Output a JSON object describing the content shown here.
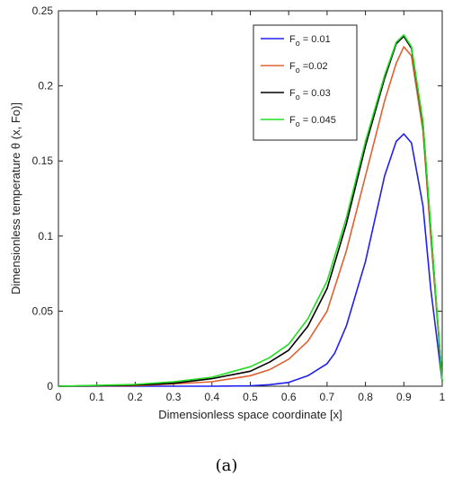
{
  "chart_data": {
    "type": "line",
    "xlabel": "Dimensionless space coordinate [x]",
    "ylabel": "Dimensionless temperature θ (x, Fo)]",
    "xlim": [
      0,
      1
    ],
    "ylim": [
      0,
      0.25
    ],
    "xticks": [
      "0",
      "0.1",
      "0.2",
      "0.3",
      "0.4",
      "0.5",
      "0.6",
      "0.7",
      "0.8",
      "0.9",
      "1"
    ],
    "yticks": [
      "0",
      "0.05",
      "0.1",
      "0.15",
      "0.2",
      "0.25"
    ],
    "grid": false,
    "legend_position": "top-right",
    "series": [
      {
        "name": "Fo = 0.01",
        "legend_sub": "o",
        "legend_value": " = 0.01",
        "color": "#2020ee",
        "x": [
          0,
          0.4,
          0.5,
          0.55,
          0.6,
          0.65,
          0.7,
          0.72,
          0.75,
          0.8,
          0.85,
          0.88,
          0.9,
          0.92,
          0.95,
          0.97,
          1.0
        ],
        "y": [
          0,
          0,
          0.0003,
          0.001,
          0.0025,
          0.007,
          0.015,
          0.022,
          0.04,
          0.083,
          0.14,
          0.163,
          0.168,
          0.162,
          0.12,
          0.065,
          0.003
        ]
      },
      {
        "name": "Fo = 0.02",
        "legend_sub": "o",
        "legend_value": " =0.02",
        "color": "#e06030",
        "x": [
          0,
          0.2,
          0.3,
          0.4,
          0.5,
          0.55,
          0.6,
          0.65,
          0.7,
          0.75,
          0.8,
          0.85,
          0.88,
          0.9,
          0.92,
          0.95,
          0.97,
          1.0
        ],
        "y": [
          0,
          0.0003,
          0.0015,
          0.003,
          0.007,
          0.011,
          0.018,
          0.03,
          0.05,
          0.09,
          0.14,
          0.19,
          0.215,
          0.226,
          0.22,
          0.17,
          0.1,
          0.003
        ]
      },
      {
        "name": "Fo = 0.03",
        "legend_sub": "o",
        "legend_value": " = 0.03",
        "color": "#000000",
        "x": [
          0,
          0.2,
          0.3,
          0.4,
          0.5,
          0.55,
          0.6,
          0.65,
          0.7,
          0.75,
          0.8,
          0.85,
          0.88,
          0.9,
          0.92,
          0.95,
          0.97,
          1.0
        ],
        "y": [
          0,
          0.0008,
          0.002,
          0.005,
          0.01,
          0.016,
          0.024,
          0.04,
          0.065,
          0.108,
          0.16,
          0.205,
          0.228,
          0.233,
          0.225,
          0.175,
          0.105,
          0.003
        ]
      },
      {
        "name": "Fo = 0.045",
        "legend_sub": "o",
        "legend_value": " = 0.045",
        "color": "#22dd22",
        "x": [
          0,
          0.2,
          0.3,
          0.4,
          0.5,
          0.55,
          0.6,
          0.65,
          0.7,
          0.75,
          0.8,
          0.85,
          0.88,
          0.9,
          0.92,
          0.95,
          0.97,
          1.0
        ],
        "y": [
          0,
          0.0012,
          0.003,
          0.006,
          0.013,
          0.019,
          0.028,
          0.045,
          0.07,
          0.112,
          0.163,
          0.207,
          0.229,
          0.234,
          0.226,
          0.176,
          0.106,
          0.003
        ]
      }
    ]
  },
  "caption": "(a)"
}
